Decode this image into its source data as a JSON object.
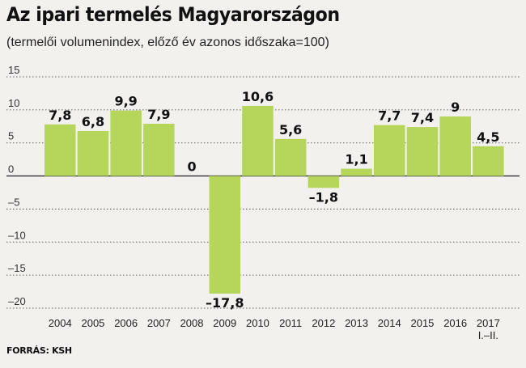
{
  "title": "Az ipari termelés Magyarországon",
  "subtitle": "(termelői volumenindex, előző év azonos időszaka=100)",
  "source": "FORRÁS: KSH",
  "colors": {
    "bar": "#b5d65a",
    "grid": "#333333",
    "background": "#f2f1ee"
  },
  "chart_data": {
    "type": "bar",
    "categories": [
      "2004",
      "2005",
      "2006",
      "2007",
      "2008",
      "2009",
      "2010",
      "2011",
      "2012",
      "2013",
      "2014",
      "2015",
      "2016",
      "2017"
    ],
    "category_sublabels": [
      "",
      "",
      "",
      "",
      "",
      "",
      "",
      "",
      "",
      "",
      "",
      "",
      "",
      "I.–II."
    ],
    "values": [
      7.8,
      6.8,
      9.9,
      7.9,
      0,
      -17.8,
      10.6,
      5.6,
      -1.8,
      1.1,
      7.7,
      7.4,
      9,
      4.5
    ],
    "value_labels": [
      "7,8",
      "6,8",
      "9,9",
      "7,9",
      "0",
      "–17,8",
      "10,6",
      "5,6",
      "–1,8",
      "1,1",
      "7,7",
      "7,4",
      "9",
      "4,5"
    ],
    "y_ticks": [
      15,
      10,
      5,
      0,
      -5,
      -10,
      -15,
      -20
    ],
    "y_tick_labels": [
      "15",
      "10",
      "5",
      "0",
      "–5",
      "–10",
      "–15",
      "–20"
    ],
    "ylim": [
      -20,
      15
    ],
    "grid": true,
    "title": "Az ipari termelés Magyarországon",
    "xlabel": "",
    "ylabel": ""
  }
}
